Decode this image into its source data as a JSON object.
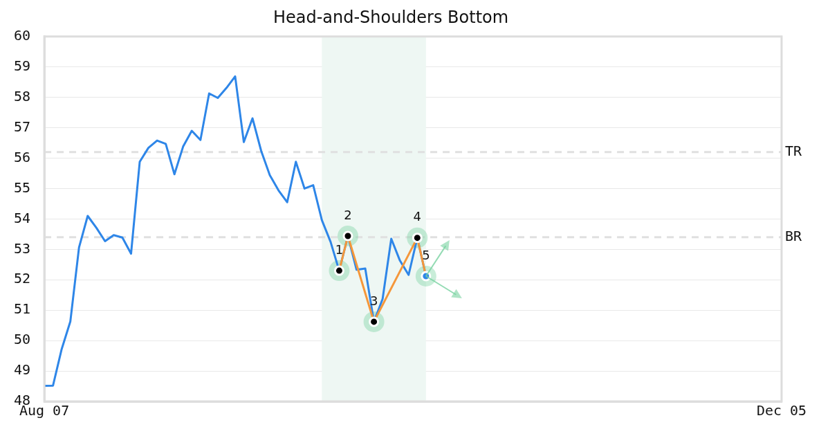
{
  "chart_data": {
    "type": "line",
    "title": "Head-and-Shoulders Bottom",
    "categories": [
      "Aug 07",
      null,
      null,
      null,
      null,
      null,
      null,
      null,
      null,
      null,
      null,
      null,
      null,
      null,
      null,
      null,
      null,
      null,
      null,
      null,
      null,
      null,
      null,
      null,
      null,
      null,
      null,
      null,
      null,
      null,
      null,
      null,
      null,
      null,
      null,
      null,
      null,
      null,
      null,
      null,
      null,
      null,
      null,
      null,
      null,
      null,
      null,
      null,
      null,
      null,
      null,
      null,
      null,
      null,
      null,
      null,
      null,
      null,
      null,
      null,
      null,
      null,
      null,
      null,
      null,
      null,
      null,
      null,
      null,
      null,
      null,
      null,
      null,
      null,
      null,
      null,
      null,
      null,
      null,
      null,
      null,
      null,
      null,
      null,
      null,
      "Dec 05"
    ],
    "ylim": [
      48,
      60
    ],
    "yticks": [
      48,
      49,
      50,
      51,
      52,
      53,
      54,
      55,
      56,
      57,
      58,
      59,
      60
    ],
    "grid": "y",
    "series": [
      {
        "color": "#2e86e8",
        "marker": "none",
        "values": [
          48.51,
          48.52,
          49.72,
          50.63,
          53.06,
          54.1,
          53.71,
          53.27,
          53.47,
          53.39,
          52.86,
          55.88,
          56.34,
          56.58,
          56.47,
          55.47,
          56.38,
          56.9,
          56.6,
          58.13,
          57.98,
          58.31,
          58.69,
          56.53,
          57.31,
          56.24,
          55.44,
          54.94,
          54.55,
          55.88,
          55.0,
          55.11,
          53.96,
          53.25,
          52.3,
          53.44,
          52.33,
          52.37,
          50.62,
          51.37,
          53.35,
          52.63,
          52.16,
          53.38,
          52.12,
          null,
          null,
          null,
          null,
          null,
          null,
          null,
          null,
          null,
          null,
          null,
          null,
          null,
          null,
          null,
          null,
          null,
          null,
          null,
          null,
          null,
          null,
          null,
          null,
          null,
          null,
          null,
          null,
          null,
          null,
          null,
          null,
          null,
          null,
          null,
          null,
          null,
          null,
          null,
          null,
          null
        ]
      },
      {
        "color": "#f5973a",
        "marker": "circle",
        "colors": [
          null,
          null,
          null,
          null,
          null,
          null,
          null,
          null,
          null,
          null,
          null,
          null,
          null,
          null,
          null,
          null,
          null,
          null,
          null,
          null,
          null,
          null,
          null,
          null,
          null,
          null,
          null,
          null,
          null,
          null,
          null,
          null,
          null,
          null,
          "#000000",
          "#000000",
          null,
          null,
          "#000000",
          null,
          null,
          null,
          null,
          "#000000",
          "#2e86e8",
          null,
          null,
          null,
          null,
          null,
          null,
          null,
          null,
          null,
          null,
          null,
          null,
          null,
          null,
          null,
          null,
          null,
          null,
          null,
          null,
          null,
          null,
          null,
          null,
          null,
          null,
          null,
          null,
          null,
          null,
          null,
          null,
          null,
          null,
          null,
          null,
          null,
          null,
          null,
          null,
          null
        ],
        "values": [
          null,
          null,
          null,
          null,
          null,
          null,
          null,
          null,
          null,
          null,
          null,
          null,
          null,
          null,
          null,
          null,
          null,
          null,
          null,
          null,
          null,
          null,
          null,
          null,
          null,
          null,
          null,
          null,
          null,
          null,
          null,
          null,
          null,
          null,
          52.3,
          53.44,
          null,
          null,
          50.62,
          null,
          null,
          null,
          null,
          53.38,
          52.12,
          null,
          null,
          null,
          null,
          null,
          null,
          null,
          null,
          null,
          null,
          null,
          null,
          null,
          null,
          null,
          null,
          null,
          null,
          null,
          null,
          null,
          null,
          null,
          null,
          null,
          null,
          null,
          null,
          null,
          null,
          null,
          null,
          null,
          null,
          null,
          null,
          null,
          null,
          null,
          null,
          null
        ],
        "line_style": "solid"
      }
    ],
    "ref_lines": [
      {
        "axis": "y",
        "value": 56.2,
        "label": "TR",
        "color": "#e0e0e0",
        "line_style": "dashed"
      },
      {
        "axis": "y",
        "value": 53.4,
        "label": "BR",
        "color": "#e0e0e0",
        "line_style": "dashed"
      }
    ],
    "annotations": [
      "1",
      "2",
      "3",
      "4",
      "5"
    ]
  }
}
